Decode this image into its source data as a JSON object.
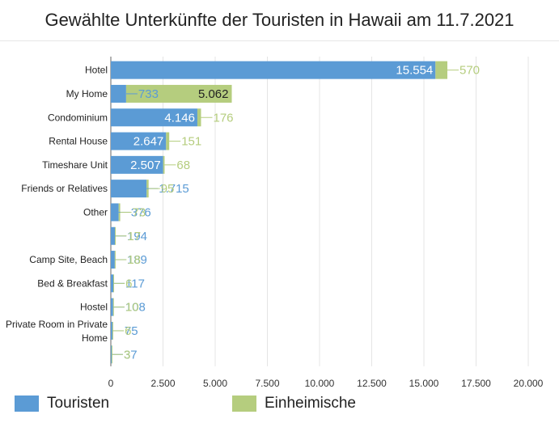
{
  "chart_data": {
    "type": "bar",
    "orientation": "horizontal",
    "stacked": true,
    "title": "Gewählte Unterkünfte der Touristen in Hawaii am 11.7.2021",
    "categories": [
      "Hotel",
      "My Home",
      "Condominium",
      "Rental House",
      "Timeshare Unit",
      "Friends or Relatives",
      "Other",
      "",
      "Camp Site, Beach",
      "Bed & Breakfast",
      "Hostel",
      "Private Room in Private Home",
      ""
    ],
    "series": [
      {
        "name": "Touristen",
        "color": "#5b9bd5",
        "values": [
          15554,
          733,
          4146,
          2647,
          2507,
          1715,
          376,
          194,
          189,
          117,
          108,
          75,
          37
        ],
        "labels": [
          "15.554",
          "733",
          "4.146",
          "2.647",
          "2.507",
          "1.715",
          "376",
          "194",
          "189",
          "117",
          "108",
          "75",
          "37"
        ]
      },
      {
        "name": "Einheimische",
        "color": "#b5cd7e",
        "values": [
          570,
          5062,
          176,
          151,
          68,
          95,
          73,
          17,
          18,
          6,
          10,
          6,
          3
        ],
        "labels": [
          "570",
          "5.062",
          "176",
          "151",
          "68",
          "95",
          "73",
          "17",
          "18",
          "6",
          "10",
          "6",
          "3"
        ]
      }
    ],
    "x_ticks": [
      "0",
      "2.500",
      "5.000",
      "7.500",
      "10.000",
      "12.500",
      "15.000",
      "17.500",
      "20.000"
    ],
    "xlim": [
      0,
      20000
    ],
    "grid": true,
    "legend_position": "bottom"
  }
}
